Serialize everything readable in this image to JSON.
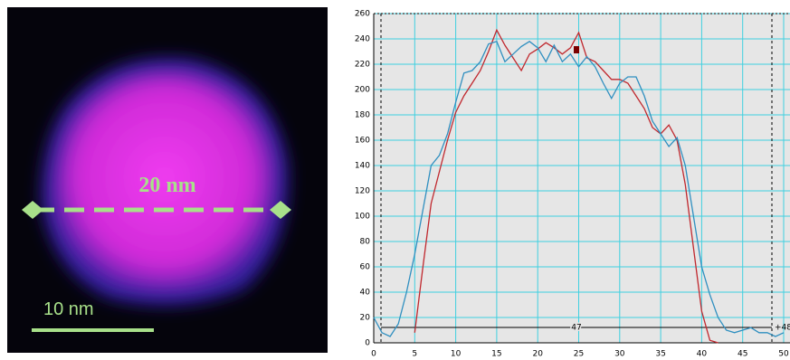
{
  "image": {
    "measure_label": "20 nm",
    "scale_label": "10 nm"
  },
  "chart_data": {
    "type": "line",
    "x": [
      0,
      1,
      2,
      3,
      4,
      5,
      6,
      7,
      8,
      9,
      10,
      11,
      12,
      13,
      14,
      15,
      16,
      17,
      18,
      19,
      20,
      21,
      22,
      23,
      24,
      25,
      26,
      27,
      28,
      29,
      30,
      31,
      32,
      33,
      34,
      35,
      36,
      37,
      38,
      39,
      40,
      41,
      42,
      43,
      44,
      45,
      46,
      47,
      48,
      49,
      50
    ],
    "series": [
      {
        "color": "#c0282e",
        "values": [
          null,
          null,
          null,
          null,
          null,
          8,
          60,
          110,
          135,
          160,
          182,
          195,
          205,
          215,
          230,
          247,
          235,
          225,
          215,
          228,
          232,
          237,
          233,
          228,
          233,
          245,
          225,
          222,
          215,
          208,
          208,
          205,
          195,
          185,
          170,
          165,
          172,
          160,
          125,
          75,
          25,
          2,
          0,
          null,
          null,
          null,
          null,
          null,
          null,
          null,
          null
        ]
      },
      {
        "color": "#2f8fc0",
        "values": [
          20,
          8,
          5,
          15,
          40,
          70,
          105,
          140,
          148,
          165,
          190,
          213,
          215,
          222,
          236,
          238,
          222,
          228,
          234,
          238,
          233,
          222,
          235,
          222,
          228,
          218,
          226,
          218,
          205,
          193,
          205,
          210,
          210,
          195,
          175,
          165,
          155,
          162,
          140,
          100,
          60,
          38,
          20,
          10,
          8,
          10,
          12,
          8,
          8,
          5,
          8
        ]
      }
    ],
    "annotations": [
      "47",
      "+48"
    ],
    "xlim": [
      0,
      50
    ],
    "ylim": [
      0,
      260
    ],
    "xticks": [
      0,
      5,
      10,
      15,
      20,
      25,
      30,
      35,
      40,
      45,
      50
    ],
    "yticks": [
      0,
      20,
      40,
      60,
      80,
      100,
      120,
      140,
      160,
      180,
      200,
      220,
      240,
      260
    ],
    "grid": true
  }
}
